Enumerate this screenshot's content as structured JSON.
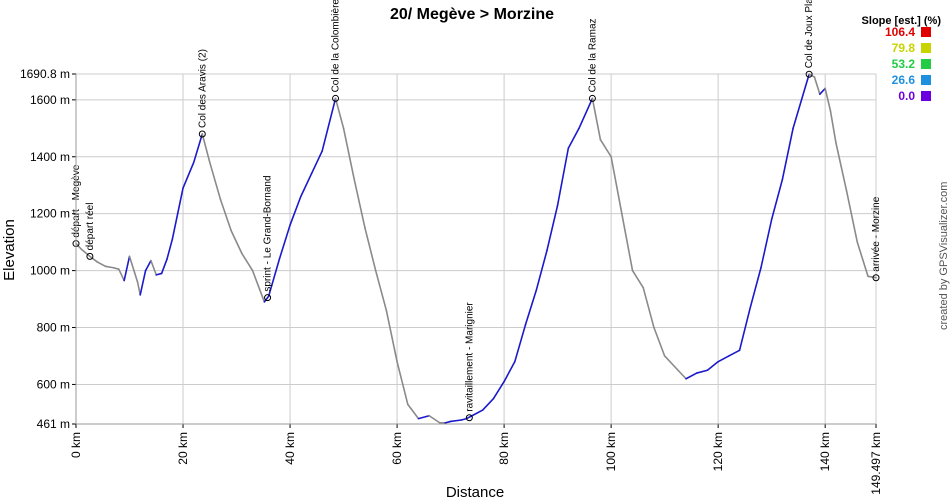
{
  "chart_data": {
    "type": "line",
    "title": "20/ Megève > Morzine",
    "xlabel": "Distance",
    "ylabel": "Elevation",
    "xlim": [
      0,
      149.497
    ],
    "ylim": [
      461,
      1690.8
    ],
    "x_ticks": [
      {
        "value": 0,
        "label": "0 km"
      },
      {
        "value": 20,
        "label": "20 km"
      },
      {
        "value": 40,
        "label": "40 km"
      },
      {
        "value": 60,
        "label": "60 km"
      },
      {
        "value": 80,
        "label": "80 km"
      },
      {
        "value": 100,
        "label": "100 km"
      },
      {
        "value": 120,
        "label": "120 km"
      },
      {
        "value": 140,
        "label": "140 km"
      },
      {
        "value": 149.497,
        "label": "149.497 km"
      }
    ],
    "y_ticks": [
      {
        "value": 461,
        "label": "461 m"
      },
      {
        "value": 600,
        "label": "600 m"
      },
      {
        "value": 800,
        "label": "800 m"
      },
      {
        "value": 1000,
        "label": "1000 m"
      },
      {
        "value": 1200,
        "label": "1200 m"
      },
      {
        "value": 1400,
        "label": "1400 m"
      },
      {
        "value": 1600,
        "label": "1600 m"
      },
      {
        "value": 1690.8,
        "label": "1690.8 m"
      }
    ],
    "grid": true,
    "profile": {
      "x": [
        0,
        1,
        2.6,
        4,
        5.5,
        7,
        8,
        9,
        10,
        11.5,
        12,
        13,
        14,
        15,
        16,
        17,
        18,
        19,
        20,
        22,
        23.6,
        25,
        27,
        29,
        31,
        33,
        35.2,
        36,
        38,
        40,
        42,
        44,
        46,
        48.5,
        50,
        52,
        54,
        56,
        58,
        60,
        62,
        64,
        66,
        68,
        69,
        70,
        72,
        73,
        74,
        76,
        78,
        80,
        82,
        84,
        86,
        88,
        90,
        92,
        94,
        96.5,
        98,
        100,
        102,
        104,
        106,
        108,
        110,
        112,
        114,
        116,
        118,
        120,
        122,
        124,
        126,
        128,
        130,
        132,
        134,
        137,
        138,
        139,
        140,
        141,
        142,
        144,
        146,
        148,
        149.497
      ],
      "y": [
        1095,
        1075,
        1050,
        1030,
        1015,
        1010,
        1005,
        965,
        1050,
        960,
        915,
        1000,
        1035,
        985,
        990,
        1040,
        1110,
        1200,
        1290,
        1380,
        1480,
        1380,
        1250,
        1140,
        1060,
        1000,
        890,
        910,
        1040,
        1160,
        1260,
        1340,
        1420,
        1605,
        1500,
        1320,
        1150,
        1000,
        860,
        680,
        530,
        480,
        490,
        465,
        465,
        470,
        475,
        480,
        490,
        510,
        550,
        610,
        680,
        810,
        930,
        1070,
        1230,
        1430,
        1500,
        1605,
        1460,
        1400,
        1200,
        1000,
        940,
        800,
        700,
        660,
        620,
        640,
        650,
        680,
        700,
        720,
        870,
        1010,
        1180,
        1320,
        1500,
        1690,
        1680,
        1620,
        1640,
        1560,
        1450,
        1280,
        1100,
        980,
        975
      ]
    },
    "waypoints": [
      {
        "x": 0,
        "y": 1095,
        "label": "départ - Megève"
      },
      {
        "x": 2.6,
        "y": 1050,
        "label": "départ réel"
      },
      {
        "x": 23.6,
        "y": 1480,
        "label": "Col des Aravis (2)"
      },
      {
        "x": 35.8,
        "y": 905,
        "label": "sprint - Le Grand-Bornand"
      },
      {
        "x": 48.5,
        "y": 1605,
        "label": "Col de la Colombière"
      },
      {
        "x": 73.5,
        "y": 483,
        "label": "ravitaillement - Marignier"
      },
      {
        "x": 96.5,
        "y": 1605,
        "label": "Col de la Ramaz"
      },
      {
        "x": 137,
        "y": 1690,
        "label": "Col de Joux Plane"
      },
      {
        "x": 149.497,
        "y": 975,
        "label": "arrivée - Morzine"
      }
    ],
    "legend": {
      "title": "Slope [est.] (%)",
      "placement": "top-right",
      "entries": [
        {
          "value": "106.4",
          "color": "#e00000"
        },
        {
          "value": "79.8",
          "color": "#c8d400"
        },
        {
          "value": "53.2",
          "color": "#22cc44"
        },
        {
          "value": "26.6",
          "color": "#1e90e0"
        },
        {
          "value": "0.0",
          "color": "#6a00e0"
        }
      ]
    },
    "colors": {
      "climb": "#1a1acc",
      "descent": "#8a8a8a",
      "grid": "#cccccc",
      "axis": "#999999"
    }
  },
  "credit": "created by GPSVisualizer.com"
}
